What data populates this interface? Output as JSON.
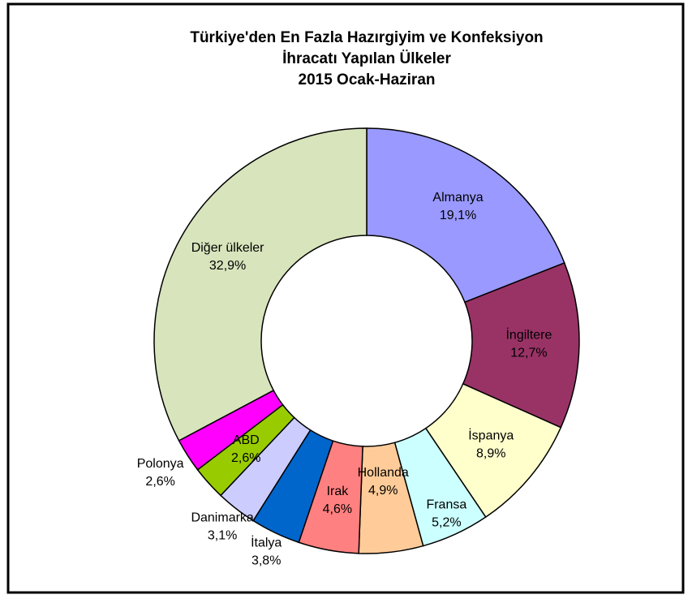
{
  "chart_data": {
    "type": "donut",
    "title": [
      "Türkiye'den En Fazla Hazırgiyim ve Konfeksiyon",
      "İhracatı Yapılan Ülkeler",
      "2015 Ocak-Haziran"
    ],
    "categories": [
      "Almanya",
      "İngiltere",
      "İspanya",
      "Fransa",
      "Hollanda",
      "Irak",
      "İtalya",
      "Danimarka",
      "ABD",
      "Polonya",
      "Diğer ülkeler"
    ],
    "values": [
      19.1,
      12.7,
      8.9,
      5.2,
      4.9,
      4.6,
      3.8,
      3.1,
      2.6,
      2.6,
      32.9
    ],
    "value_labels": [
      "19,1%",
      "12,7%",
      "8,9%",
      "5,2%",
      "4,9%",
      "4,6%",
      "3,8%",
      "3,1%",
      "2,6%",
      "2,6%",
      "32,9%"
    ],
    "colors": [
      "#9999ff",
      "#993366",
      "#ffffcc",
      "#ccffff",
      "#ffcc99",
      "#ff8080",
      "#0066cc",
      "#ccccff",
      "#99cc00",
      "#ff00ff",
      "#d8e4bc"
    ]
  }
}
